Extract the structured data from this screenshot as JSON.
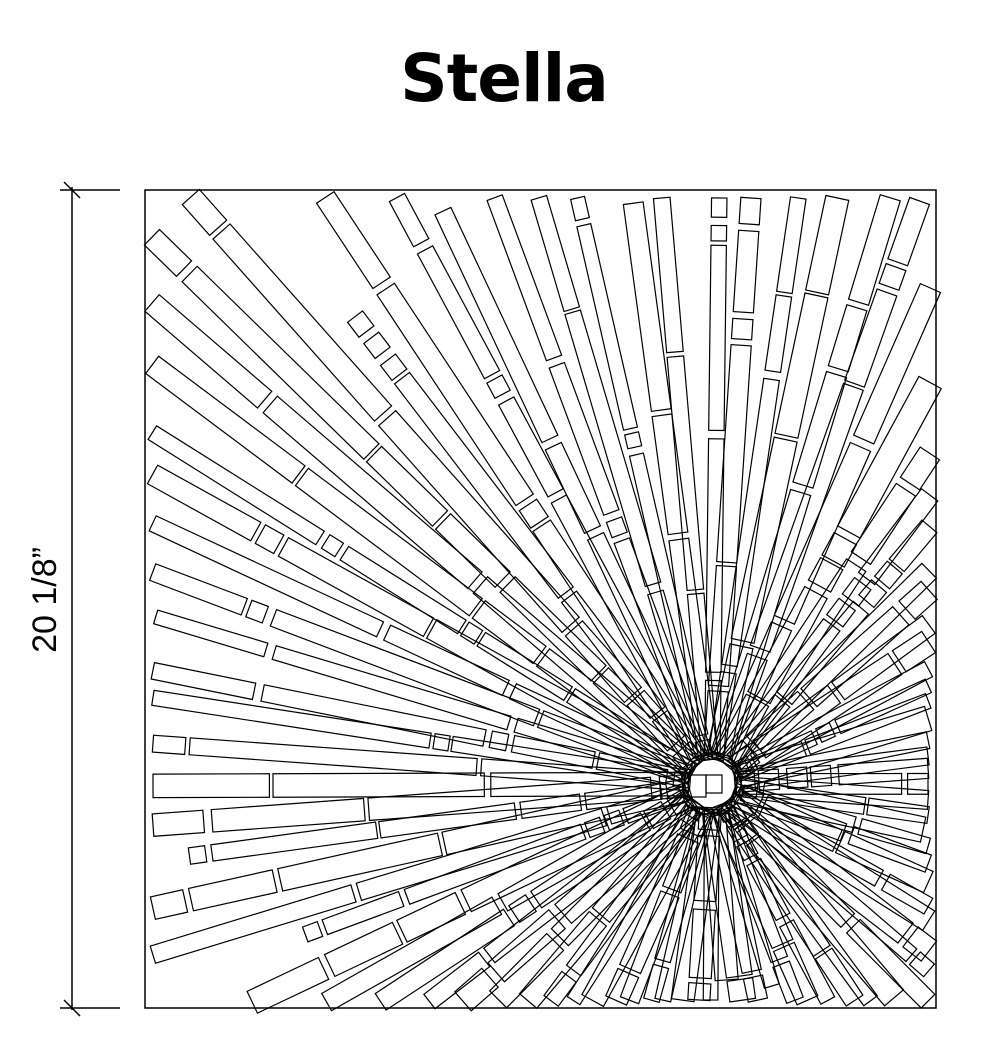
{
  "title": "Stella",
  "dimension": {
    "value": "20 1/8”"
  },
  "colors": {
    "line": "#000000",
    "background": "#ffffff"
  }
}
